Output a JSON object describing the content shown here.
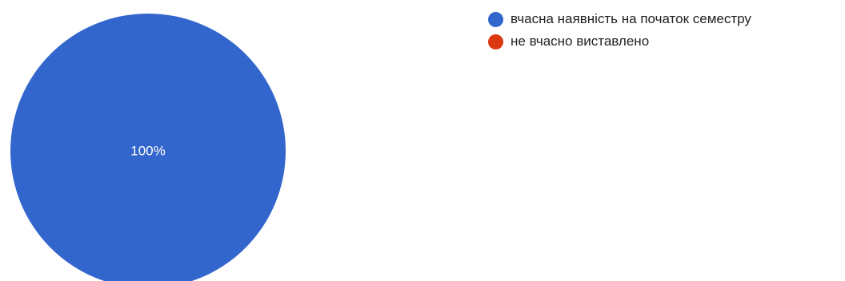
{
  "chart_data": {
    "type": "pie",
    "categories": [
      "вчасна наявність на початок семестру",
      "не вчасно виставлено"
    ],
    "values": [
      100,
      0
    ],
    "colors": [
      "#3366CC",
      "#DC3912"
    ],
    "slice_labels": [
      "100%",
      ""
    ],
    "legend_position": "top-right",
    "slice_label_color": "#ffffff"
  }
}
